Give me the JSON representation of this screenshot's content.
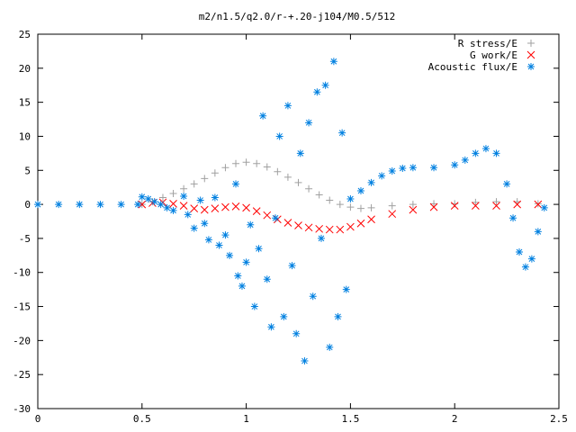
{
  "chart_data": {
    "type": "scatter",
    "title": "m2/n1.5/q2.0/r-+.20-j104/M0.5/512",
    "xlabel": "",
    "ylabel": "",
    "xlim": [
      0,
      2.5
    ],
    "ylim": [
      -30,
      25
    ],
    "grid": false,
    "legend_position": "top-right",
    "x_ticks": [
      "0",
      "0.5",
      "1",
      "1.5",
      "2",
      "2.5"
    ],
    "y_ticks": [
      "25",
      "20",
      "15",
      "10",
      "5",
      "0",
      "-5",
      "-10",
      "-15",
      "-20",
      "-25",
      "-30"
    ],
    "series": [
      {
        "name": "R stress/E",
        "marker": "plus",
        "color": "#a0a0a0",
        "points": [
          [
            0.5,
            0.0
          ],
          [
            0.55,
            0.4
          ],
          [
            0.6,
            1.0
          ],
          [
            0.65,
            1.6
          ],
          [
            0.7,
            2.3
          ],
          [
            0.75,
            3.0
          ],
          [
            0.8,
            3.8
          ],
          [
            0.85,
            4.6
          ],
          [
            0.9,
            5.4
          ],
          [
            0.95,
            6.0
          ],
          [
            1.0,
            6.2
          ],
          [
            1.05,
            6.0
          ],
          [
            1.1,
            5.5
          ],
          [
            1.15,
            4.8
          ],
          [
            1.2,
            4.0
          ],
          [
            1.25,
            3.2
          ],
          [
            1.3,
            2.3
          ],
          [
            1.35,
            1.4
          ],
          [
            1.4,
            0.6
          ],
          [
            1.45,
            0.0
          ],
          [
            1.5,
            -0.4
          ],
          [
            1.55,
            -0.6
          ],
          [
            1.6,
            -0.5
          ],
          [
            1.7,
            -0.2
          ],
          [
            1.8,
            0.0
          ],
          [
            1.9,
            0.1
          ],
          [
            2.0,
            0.1
          ],
          [
            2.1,
            0.3
          ],
          [
            2.2,
            0.4
          ],
          [
            2.3,
            0.4
          ],
          [
            2.4,
            0.1
          ]
        ]
      },
      {
        "name": "G work/E",
        "marker": "cross",
        "color": "#ff0000",
        "points": [
          [
            0.5,
            0.0
          ],
          [
            0.55,
            0.2
          ],
          [
            0.6,
            0.3
          ],
          [
            0.65,
            0.1
          ],
          [
            0.7,
            -0.2
          ],
          [
            0.75,
            -0.6
          ],
          [
            0.8,
            -0.8
          ],
          [
            0.85,
            -0.6
          ],
          [
            0.9,
            -0.4
          ],
          [
            0.95,
            -0.3
          ],
          [
            1.0,
            -0.5
          ],
          [
            1.05,
            -1.0
          ],
          [
            1.1,
            -1.6
          ],
          [
            1.15,
            -2.2
          ],
          [
            1.2,
            -2.7
          ],
          [
            1.25,
            -3.1
          ],
          [
            1.3,
            -3.4
          ],
          [
            1.35,
            -3.6
          ],
          [
            1.4,
            -3.7
          ],
          [
            1.45,
            -3.7
          ],
          [
            1.5,
            -3.3
          ],
          [
            1.55,
            -2.8
          ],
          [
            1.6,
            -2.2
          ],
          [
            1.7,
            -1.4
          ],
          [
            1.8,
            -0.8
          ],
          [
            1.9,
            -0.4
          ],
          [
            2.0,
            -0.2
          ],
          [
            2.1,
            -0.2
          ],
          [
            2.2,
            -0.2
          ],
          [
            2.3,
            0.0
          ],
          [
            2.4,
            0.0
          ]
        ]
      },
      {
        "name": "Acoustic flux/E",
        "marker": "star",
        "color": "#0080e0",
        "points": [
          [
            0.0,
            0.0
          ],
          [
            0.1,
            0.0
          ],
          [
            0.2,
            0.0
          ],
          [
            0.3,
            0.0
          ],
          [
            0.4,
            0.0
          ],
          [
            0.48,
            0.0
          ],
          [
            0.5,
            1.1
          ],
          [
            0.53,
            0.8
          ],
          [
            0.56,
            0.4
          ],
          [
            0.59,
            0.0
          ],
          [
            0.62,
            -0.5
          ],
          [
            0.65,
            -0.9
          ],
          [
            0.7,
            1.2
          ],
          [
            0.72,
            -1.5
          ],
          [
            0.75,
            -3.5
          ],
          [
            0.78,
            0.6
          ],
          [
            0.8,
            -2.8
          ],
          [
            0.82,
            -5.2
          ],
          [
            0.85,
            1.0
          ],
          [
            0.87,
            -6.0
          ],
          [
            0.9,
            -4.5
          ],
          [
            0.92,
            -7.5
          ],
          [
            0.95,
            3.0
          ],
          [
            0.96,
            -10.5
          ],
          [
            0.98,
            -12.0
          ],
          [
            1.0,
            -8.5
          ],
          [
            1.02,
            -3.0
          ],
          [
            1.04,
            -15.0
          ],
          [
            1.06,
            -6.5
          ],
          [
            1.08,
            13.0
          ],
          [
            1.1,
            -11.0
          ],
          [
            1.12,
            -18.0
          ],
          [
            1.14,
            -2.0
          ],
          [
            1.16,
            10.0
          ],
          [
            1.18,
            -16.5
          ],
          [
            1.2,
            14.5
          ],
          [
            1.22,
            -9.0
          ],
          [
            1.24,
            -19.0
          ],
          [
            1.26,
            7.5
          ],
          [
            1.28,
            -23.0
          ],
          [
            1.3,
            12.0
          ],
          [
            1.32,
            -13.5
          ],
          [
            1.34,
            16.5
          ],
          [
            1.36,
            -5.0
          ],
          [
            1.38,
            17.5
          ],
          [
            1.4,
            -21.0
          ],
          [
            1.42,
            21.0
          ],
          [
            1.44,
            -16.5
          ],
          [
            1.46,
            10.5
          ],
          [
            1.48,
            -12.5
          ],
          [
            1.5,
            0.8
          ],
          [
            1.55,
            2.0
          ],
          [
            1.6,
            3.2
          ],
          [
            1.65,
            4.2
          ],
          [
            1.7,
            4.9
          ],
          [
            1.75,
            5.3
          ],
          [
            1.8,
            5.4
          ],
          [
            1.9,
            5.4
          ],
          [
            2.0,
            5.8
          ],
          [
            2.05,
            6.5
          ],
          [
            2.1,
            7.5
          ],
          [
            2.15,
            8.2
          ],
          [
            2.2,
            7.5
          ],
          [
            2.25,
            3.0
          ],
          [
            2.28,
            -2.0
          ],
          [
            2.31,
            -7.0
          ],
          [
            2.34,
            -9.2
          ],
          [
            2.37,
            -8.0
          ],
          [
            2.4,
            -4.0
          ],
          [
            2.43,
            -0.5
          ]
        ]
      }
    ]
  }
}
